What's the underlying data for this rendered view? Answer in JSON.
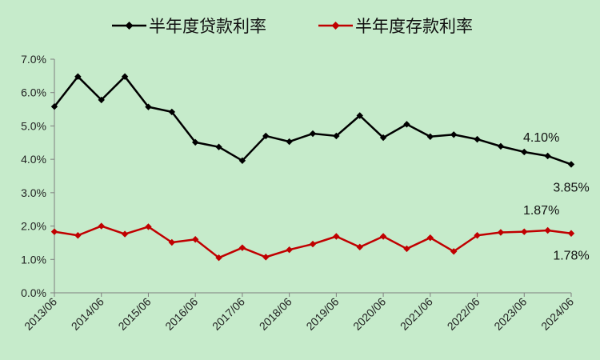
{
  "chart_data": {
    "type": "line",
    "title": "",
    "xlabel": "",
    "ylabel": "",
    "ylim": [
      0,
      7
    ],
    "y_ticks": [
      0,
      1,
      2,
      3,
      4,
      5,
      6,
      7
    ],
    "y_tick_labels": [
      "0.0%",
      "1.0%",
      "2.0%",
      "3.0%",
      "4.0%",
      "5.0%",
      "6.0%",
      "7.0%"
    ],
    "x_tick_labels": [
      "2013/06",
      "2014/06",
      "2015/06",
      "2016/06",
      "2017/06",
      "2018/06",
      "2019/06",
      "2020/06",
      "2021/06",
      "2022/06",
      "2023/06",
      "2024/06"
    ],
    "x": [
      "2013/06",
      "2013/12",
      "2014/06",
      "2014/12",
      "2015/06",
      "2015/12",
      "2016/06",
      "2016/12",
      "2017/06",
      "2017/12",
      "2018/06",
      "2018/12",
      "2019/06",
      "2019/12",
      "2020/06",
      "2020/12",
      "2021/06",
      "2021/12",
      "2022/06",
      "2022/12",
      "2023/06",
      "2023/12",
      "2024/06"
    ],
    "grid": false,
    "legend_position": "top",
    "series": [
      {
        "name": "半年度贷款利率",
        "color": "#000000",
        "values": [
          5.58,
          6.48,
          5.78,
          6.48,
          5.57,
          5.42,
          4.51,
          4.37,
          3.96,
          4.7,
          4.53,
          4.77,
          4.7,
          5.31,
          4.65,
          5.05,
          4.68,
          4.74,
          4.6,
          4.39,
          4.22,
          4.1,
          3.85
        ]
      },
      {
        "name": "半年度存款利率",
        "color": "#c00000",
        "values": [
          1.83,
          1.72,
          2.0,
          1.76,
          1.98,
          1.51,
          1.6,
          1.05,
          1.35,
          1.07,
          1.29,
          1.46,
          1.69,
          1.37,
          1.69,
          1.32,
          1.65,
          1.24,
          1.72,
          1.81,
          1.83,
          1.87,
          1.78
        ]
      }
    ],
    "data_labels": [
      {
        "series": 0,
        "index": 21,
        "text": "4.10%"
      },
      {
        "series": 0,
        "index": 22,
        "text": "3.85%"
      },
      {
        "series": 1,
        "index": 21,
        "text": "1.87%"
      },
      {
        "series": 1,
        "index": 22,
        "text": "1.78%"
      }
    ]
  }
}
